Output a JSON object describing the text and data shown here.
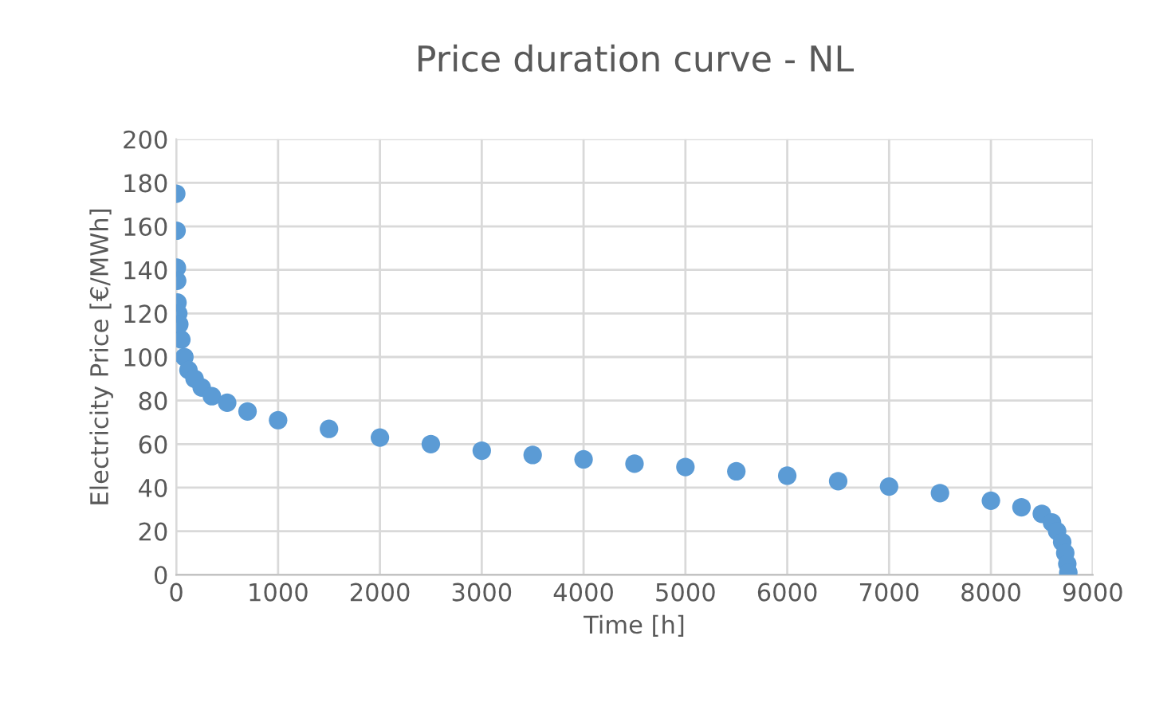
{
  "chart_data": {
    "type": "scatter",
    "title": "Price duration curve - NL",
    "xlabel": "Time [h]",
    "ylabel": "Electricity Price [€/MWh]",
    "x": [
      0,
      3,
      6,
      9,
      12,
      20,
      30,
      50,
      80,
      120,
      180,
      250,
      350,
      500,
      700,
      1000,
      1500,
      2000,
      2500,
      3000,
      3500,
      4000,
      4500,
      5000,
      5500,
      6000,
      6500,
      7000,
      7500,
      8000,
      8300,
      8500,
      8600,
      8650,
      8700,
      8730,
      8750,
      8760
    ],
    "values": [
      175,
      158,
      141,
      135,
      125,
      120,
      115,
      108,
      100,
      94,
      90,
      86,
      82,
      79,
      75,
      71,
      67,
      63,
      60,
      57,
      55,
      53,
      51,
      49.5,
      47.5,
      45.5,
      43,
      40.5,
      37.5,
      34,
      31,
      28,
      24,
      20,
      15,
      10,
      5,
      1
    ],
    "color": "#5b9bd5",
    "marker": "circle",
    "xlim": [
      0,
      9000
    ],
    "xticks": [
      0,
      1000,
      2000,
      3000,
      4000,
      5000,
      6000,
      7000,
      8000,
      9000
    ],
    "ylim": [
      0,
      200
    ],
    "yticks": [
      0,
      20,
      40,
      60,
      80,
      100,
      120,
      140,
      160,
      180,
      200
    ],
    "grid": true
  }
}
